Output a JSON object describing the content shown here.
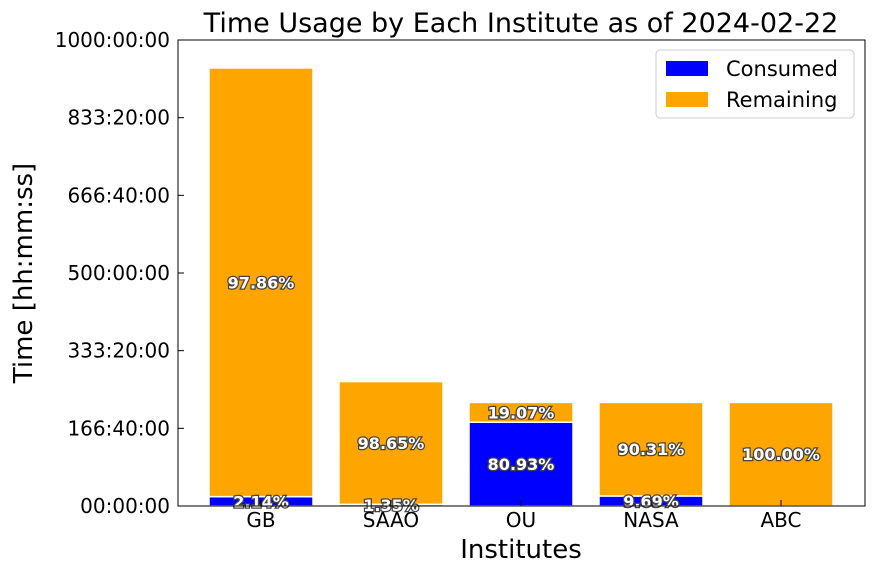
{
  "chart_data": {
    "type": "bar",
    "stacked": true,
    "title": "Time Usage by Each Institute as of 2024-02-22",
    "xlabel": "Institutes",
    "ylabel": "Time [hh:mm:ss]",
    "categories": [
      "GB",
      "SAAO",
      "OU",
      "NASA",
      "ABC"
    ],
    "y_unit": "hours",
    "ylim": [
      0,
      1000
    ],
    "yticks": [
      0,
      166.6667,
      333.3333,
      500,
      666.6667,
      833.3333,
      1000
    ],
    "ytick_labels": [
      "00:00:00",
      "166:40:00",
      "333:20:00",
      "500:00:00",
      "666:40:00",
      "833:20:00",
      "1000:00:00"
    ],
    "series": [
      {
        "name": "Consumed",
        "color": "#0000ff",
        "values": [
          20.1,
          3.6,
          179.9,
          21.5,
          0
        ],
        "labels": [
          "2.14%",
          "1.35%",
          "80.93%",
          "9.69%",
          ""
        ]
      },
      {
        "name": "Remaining",
        "color": "#ffa500",
        "values": [
          919.9,
          263.4,
          42.4,
          200.8,
          222.3
        ],
        "labels": [
          "97.86%",
          "98.65%",
          "19.07%",
          "90.31%",
          "100.00%"
        ]
      }
    ],
    "legend": {
      "position": "top-right"
    },
    "grid": false
  }
}
